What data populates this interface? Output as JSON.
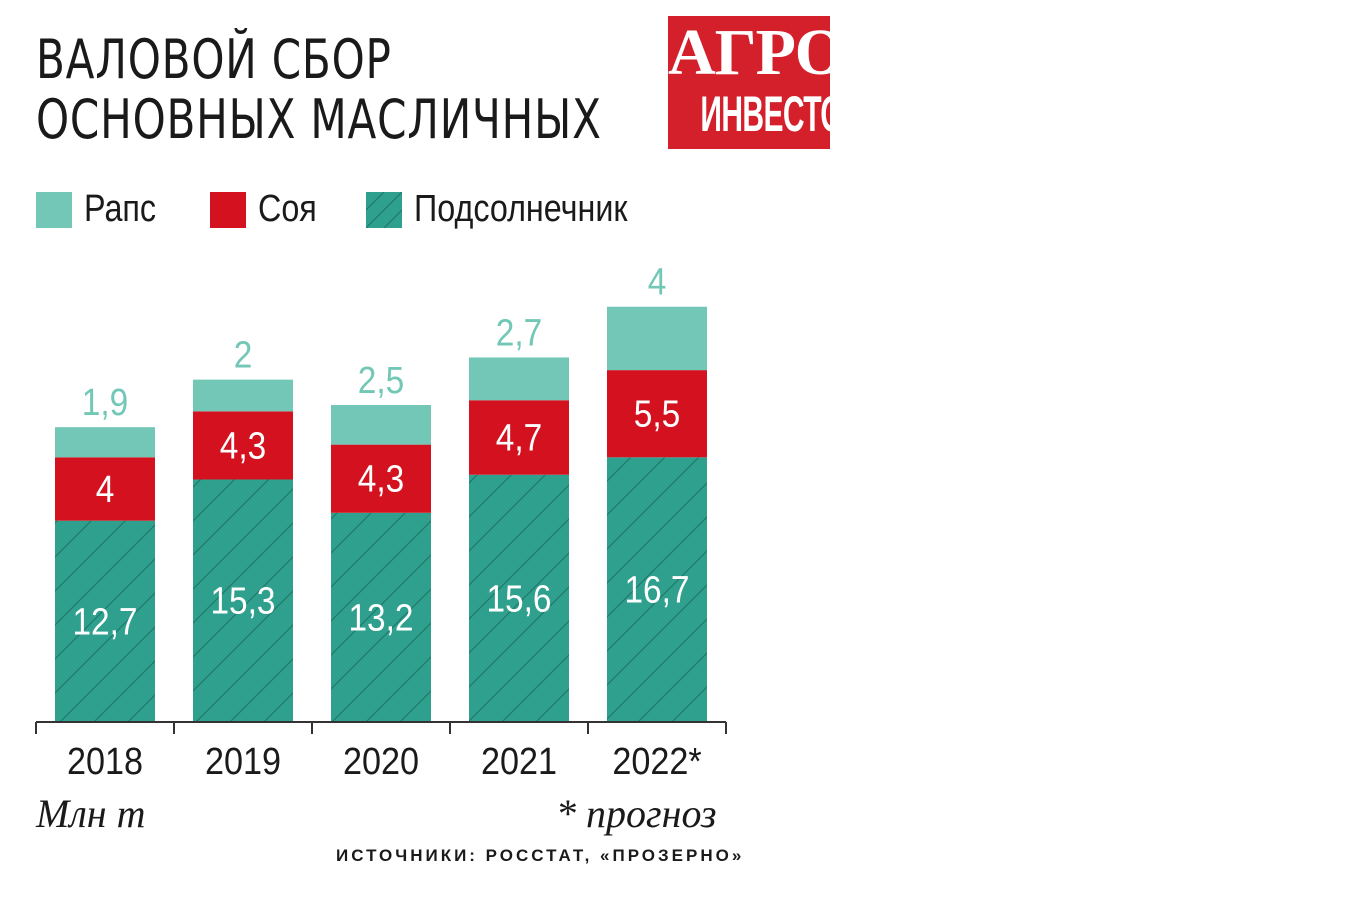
{
  "title": {
    "line1": "ВАЛОВОЙ СБОР",
    "line2": "ОСНОВНЫХ МАСЛИЧНЫХ"
  },
  "logo": {
    "line1": "АГРО",
    "line2": "ИНВЕСТОР"
  },
  "colors": {
    "raps": "#72c7b6",
    "soya": "#d4121f",
    "sunflower": "#2fa08d",
    "hatch": "#1f7a6a",
    "axis": "#333333",
    "logo_bg": "#d4202a"
  },
  "legend": [
    {
      "label": "Рапс",
      "color": "#72c7b6",
      "pattern": "solid"
    },
    {
      "label": "Соя",
      "color": "#d4121f",
      "pattern": "solid"
    },
    {
      "label": "Подсолнечник",
      "color": "#2fa08d",
      "pattern": "hatched"
    }
  ],
  "unit_label": "Млн т",
  "footnote": "* прогноз",
  "source": "ИСТОЧНИКИ: РОССТАТ, «ПРОЗЕРНО»",
  "chart_data": {
    "type": "bar",
    "stacked": true,
    "categories": [
      "2018",
      "2019",
      "2020",
      "2021",
      "2022*"
    ],
    "series": [
      {
        "name": "Подсолнечник",
        "values": [
          12.7,
          15.3,
          13.2,
          15.6,
          16.7
        ],
        "labels": [
          "12,7",
          "15,3",
          "13,2",
          "15,6",
          "16,7"
        ]
      },
      {
        "name": "Соя",
        "values": [
          4,
          4.3,
          4.3,
          4.7,
          5.5
        ],
        "labels": [
          "4",
          "4,3",
          "4,3",
          "4,7",
          "5,5"
        ]
      },
      {
        "name": "Рапс",
        "values": [
          1.9,
          2,
          2.5,
          2.7,
          4
        ],
        "labels": [
          "1,9",
          "2",
          "2,5",
          "2,7",
          "4"
        ]
      }
    ],
    "ylabel": "Млн т",
    "legend_position": "top-left",
    "grid": false
  }
}
